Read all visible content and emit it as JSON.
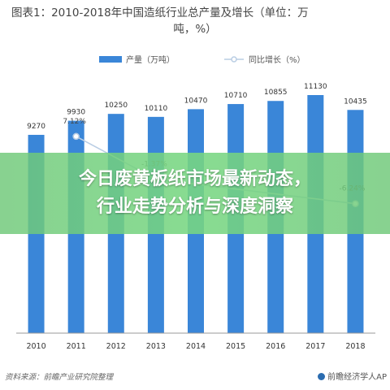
{
  "chart_data": {
    "type": "bar",
    "title": "图表1：2010-2018年中国造纸行业总产量及增长（单位：万吨，%）",
    "title_line1": "图表1：2010-2018年中国造纸行业总产量及增长（单位：万",
    "title_line2": "吨，%）",
    "categories": [
      "2010",
      "2011",
      "2012",
      "2013",
      "2014",
      "2015",
      "2016",
      "2017",
      "2018"
    ],
    "series": [
      {
        "name": "产量（万吨）",
        "type": "bar",
        "color": "#3a86d8",
        "values": [
          9270,
          9930,
          10250,
          10110,
          10470,
          10710,
          10855,
          11130,
          10435
        ]
      },
      {
        "name": "同比增长（%）",
        "type": "line",
        "color": "#b9cde4",
        "values": [
          null,
          7.12,
          null,
          -1.37,
          null,
          null,
          null,
          null,
          -6.24
        ],
        "labels": [
          "",
          "7.12%",
          "",
          "-1.37%",
          "",
          "",
          "",
          "",
          "-6.24%"
        ]
      }
    ],
    "legend": "top-center",
    "grid": false
  },
  "banner": {
    "line1": "今日废黄板纸市场最新动态，",
    "line2": "行业走势分析与深度洞察"
  },
  "source": "资料来源：前瞻产业研究院整理",
  "brand": "前瞻经济学人AP"
}
